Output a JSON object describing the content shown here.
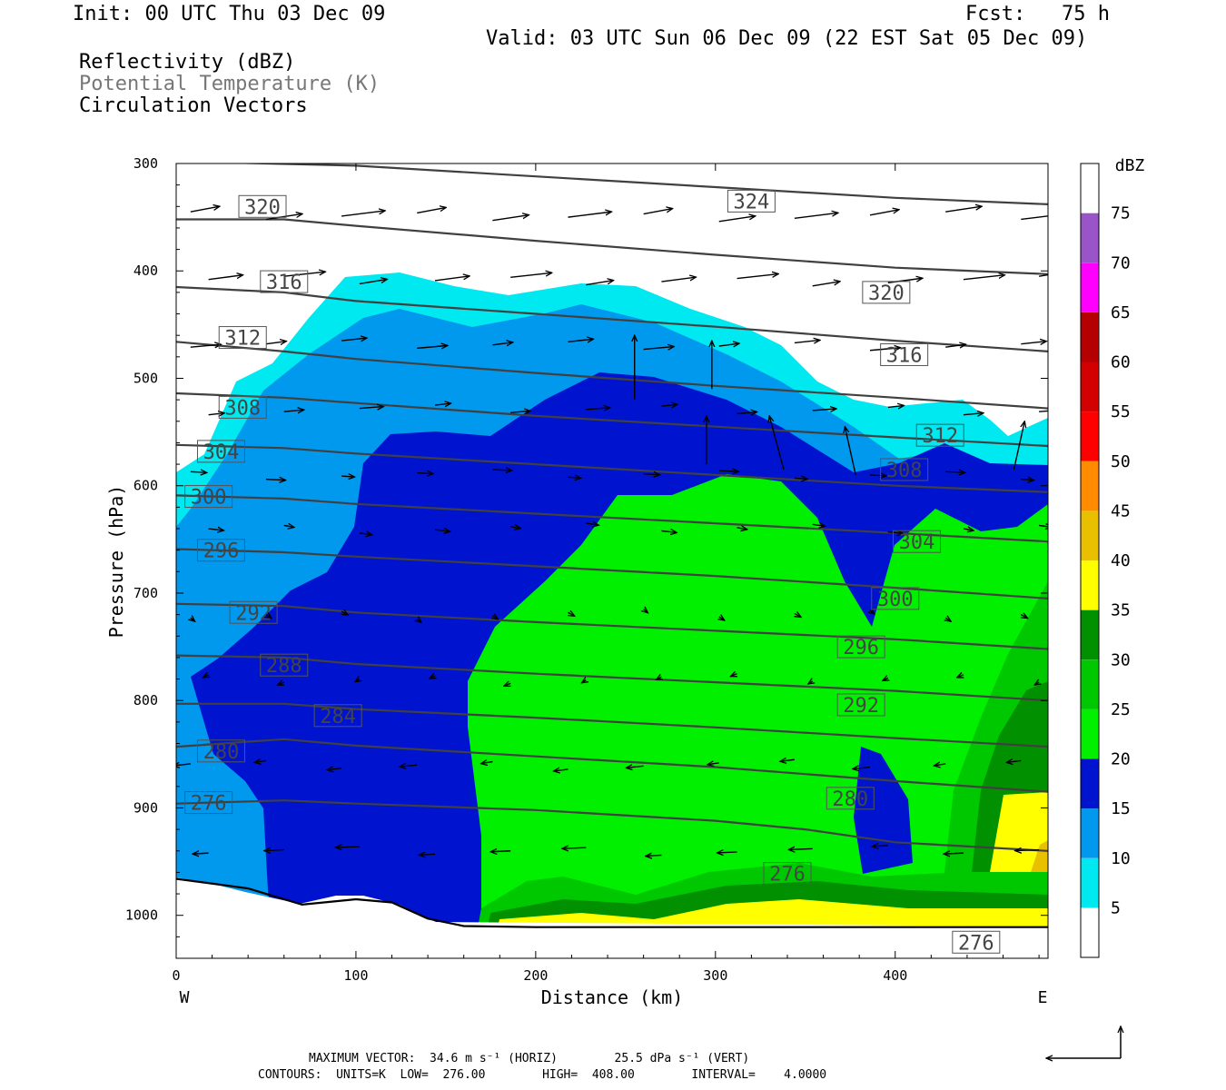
{
  "header": {
    "init": "Init: 00 UTC Thu 03 Dec 09",
    "fcst": "Fcst:   75 h",
    "valid": "Valid: 03 UTC Sun 06 Dec 09 (22 EST Sat 05 Dec 09)"
  },
  "fields": {
    "reflectivity": "Reflectivity (dBZ)",
    "theta": "Potential Temperature (K)",
    "vectors": "Circulation Vectors"
  },
  "footer": {
    "line1": "MAXIMUM VECTOR:  34.6 m s⁻¹ (HORIZ)        25.5 dPa s⁻¹ (VERT)",
    "line2": "CONTOURS:  UNITS=K  LOW=  276.00        HIGH=  408.00        INTERVAL=    4.0000"
  },
  "chart_data": {
    "type": "cross-section",
    "xlabel": "Distance (km)",
    "ylabel": "Pressure (hPa)",
    "x_ticks": [
      0,
      100,
      200,
      300,
      400
    ],
    "y_ticks": [
      300,
      400,
      500,
      600,
      700,
      800,
      900,
      1000
    ],
    "xlim": [
      0,
      485
    ],
    "ylim": [
      300,
      1040
    ],
    "y_reversed": true,
    "x_left_label": "W",
    "x_right_label": "E",
    "colorbar": {
      "units": "dBZ",
      "levels": [
        5,
        10,
        15,
        20,
        25,
        30,
        35,
        40,
        45,
        50,
        55,
        60,
        65,
        70,
        75
      ],
      "colors": [
        "#ffffff",
        "#00e8f0",
        "#0099ee",
        "#0014d0",
        "#00f000",
        "#00c800",
        "#009000",
        "#ffff00",
        "#e8c000",
        "#ff8c00",
        "#ff0000",
        "#d20000",
        "#b40000",
        "#ff00ff",
        "#9955c8",
        "#ffffff"
      ]
    },
    "theta_contours": {
      "levels": [
        276,
        280,
        284,
        288,
        292,
        296,
        300,
        304,
        308,
        312,
        316,
        320,
        324
      ],
      "color": "#404040",
      "lines": [
        {
          "level": 276,
          "points": [
            [
              0,
              896
            ],
            [
              60,
              893
            ],
            [
              100,
              896
            ],
            [
              200,
              902
            ],
            [
              300,
              912
            ],
            [
              350,
              920
            ],
            [
              400,
              932
            ],
            [
              485,
              940
            ]
          ]
        },
        {
          "level": 280,
          "points": [
            [
              0,
              843
            ],
            [
              60,
              836
            ],
            [
              100,
              842
            ],
            [
              200,
              852
            ],
            [
              300,
              862
            ],
            [
              400,
              875
            ],
            [
              485,
              885
            ]
          ]
        },
        {
          "level": 284,
          "points": [
            [
              0,
              803
            ],
            [
              60,
              803
            ],
            [
              100,
              808
            ],
            [
              200,
              816
            ],
            [
              300,
              825
            ],
            [
              400,
              835
            ],
            [
              485,
              843
            ]
          ]
        },
        {
          "level": 288,
          "points": [
            [
              0,
              758
            ],
            [
              60,
              760
            ],
            [
              100,
              766
            ],
            [
              200,
              775
            ],
            [
              300,
              783
            ],
            [
              400,
              791
            ],
            [
              485,
              800
            ]
          ]
        },
        {
          "level": 292,
          "points": [
            [
              0,
              710
            ],
            [
              60,
              712
            ],
            [
              100,
              718
            ],
            [
              200,
              727
            ],
            [
              300,
              735
            ],
            [
              400,
              743
            ],
            [
              485,
              752
            ]
          ]
        },
        {
          "level": 296,
          "points": [
            [
              0,
              659
            ],
            [
              60,
              662
            ],
            [
              100,
              666
            ],
            [
              200,
              675
            ],
            [
              300,
              684
            ],
            [
              400,
              695
            ],
            [
              485,
              705
            ]
          ]
        },
        {
          "level": 300,
          "points": [
            [
              0,
              609
            ],
            [
              60,
              612
            ],
            [
              100,
              617
            ],
            [
              200,
              626
            ],
            [
              300,
              635
            ],
            [
              400,
              644
            ],
            [
              485,
              652
            ]
          ]
        },
        {
          "level": 304,
          "points": [
            [
              0,
              562
            ],
            [
              60,
              565
            ],
            [
              100,
              570
            ],
            [
              200,
              580
            ],
            [
              300,
              590
            ],
            [
              400,
              600
            ],
            [
              485,
              606
            ]
          ]
        },
        {
          "level": 308,
          "points": [
            [
              0,
              514
            ],
            [
              60,
              518
            ],
            [
              100,
              523
            ],
            [
              200,
              535
            ],
            [
              300,
              545
            ],
            [
              400,
              555
            ],
            [
              485,
              563
            ]
          ]
        },
        {
          "level": 312,
          "points": [
            [
              0,
              466
            ],
            [
              60,
              475
            ],
            [
              100,
              482
            ],
            [
              200,
              495
            ],
            [
              300,
              507
            ],
            [
              400,
              518
            ],
            [
              485,
              528
            ]
          ]
        },
        {
          "level": 316,
          "points": [
            [
              0,
              415
            ],
            [
              60,
              420
            ],
            [
              100,
              428
            ],
            [
              200,
              440
            ],
            [
              300,
              452
            ],
            [
              400,
              465
            ],
            [
              485,
              475
            ]
          ]
        },
        {
          "level": 320,
          "points": [
            [
              0,
              352
            ],
            [
              60,
              352
            ],
            [
              100,
              358
            ],
            [
              200,
              372
            ],
            [
              300,
              385
            ],
            [
              400,
              397
            ],
            [
              485,
              403
            ]
          ]
        },
        {
          "level": 324,
          "points": [
            [
              0,
              298
            ],
            [
              100,
              302
            ],
            [
              200,
              312
            ],
            [
              300,
              322
            ],
            [
              400,
              332
            ],
            [
              485,
              338
            ]
          ]
        }
      ],
      "labels": [
        {
          "text": "320",
          "x": 48,
          "p": 340
        },
        {
          "text": "324",
          "x": 320,
          "p": 335
        },
        {
          "text": "316",
          "x": 60,
          "p": 410
        },
        {
          "text": "320",
          "x": 395,
          "p": 420
        },
        {
          "text": "312",
          "x": 37,
          "p": 462
        },
        {
          "text": "316",
          "x": 405,
          "p": 478
        },
        {
          "text": "308",
          "x": 37,
          "p": 527
        },
        {
          "text": "312",
          "x": 425,
          "p": 553
        },
        {
          "text": "304",
          "x": 25,
          "p": 568
        },
        {
          "text": "308",
          "x": 405,
          "p": 585
        },
        {
          "text": "300",
          "x": 18,
          "p": 610
        },
        {
          "text": "304",
          "x": 412,
          "p": 652
        },
        {
          "text": "296",
          "x": 25,
          "p": 660
        },
        {
          "text": "300",
          "x": 400,
          "p": 705
        },
        {
          "text": "292",
          "x": 43,
          "p": 718
        },
        {
          "text": "296",
          "x": 381,
          "p": 750
        },
        {
          "text": "288",
          "x": 60,
          "p": 767
        },
        {
          "text": "292",
          "x": 381,
          "p": 804
        },
        {
          "text": "284",
          "x": 90,
          "p": 814
        },
        {
          "text": "280",
          "x": 25,
          "p": 847
        },
        {
          "text": "280",
          "x": 375,
          "p": 891
        },
        {
          "text": "276",
          "x": 18,
          "p": 895
        },
        {
          "text": "276",
          "x": 340,
          "p": 961
        },
        {
          "text": "276",
          "x": 445,
          "p": 1025
        }
      ]
    },
    "terrain": {
      "points": [
        [
          0,
          966
        ],
        [
          40,
          975
        ],
        [
          70,
          990
        ],
        [
          100,
          985
        ],
        [
          120,
          988
        ],
        [
          140,
          1003
        ],
        [
          160,
          1010
        ],
        [
          200,
          1011
        ],
        [
          300,
          1011
        ],
        [
          400,
          1011
        ],
        [
          485,
          1011
        ]
      ]
    },
    "vector_note": "Circulation vectors: westerly flow aloft, weak easterly flow at low levels"
  }
}
